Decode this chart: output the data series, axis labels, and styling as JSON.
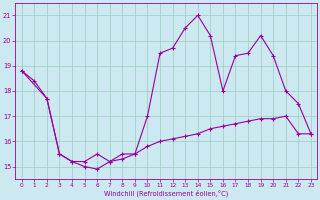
{
  "xlabel": "Windchill (Refroidissement éolien,°C)",
  "background_color": "#cce8f0",
  "line_color": "#990099",
  "grid_color": "#99ccbb",
  "ylim": [
    14.5,
    21.5
  ],
  "xlim": [
    -0.5,
    23.5
  ],
  "yticks": [
    15,
    16,
    17,
    18,
    19,
    20,
    21
  ],
  "xticks": [
    0,
    1,
    2,
    3,
    4,
    5,
    6,
    7,
    8,
    9,
    10,
    11,
    12,
    13,
    14,
    15,
    16,
    17,
    18,
    19,
    20,
    21,
    22,
    23
  ],
  "series1_x": [
    0,
    1,
    2,
    3,
    4,
    5,
    6,
    7,
    8,
    9,
    10,
    11,
    12,
    13,
    14,
    15,
    16,
    17,
    18,
    19,
    20,
    21,
    22,
    23
  ],
  "series1_y": [
    18.8,
    18.4,
    17.7,
    15.5,
    15.2,
    15.0,
    14.9,
    15.2,
    15.5,
    15.5,
    17.0,
    19.5,
    19.7,
    20.5,
    21.0,
    20.2,
    18.0,
    19.4,
    19.5,
    20.2,
    19.4,
    18.0,
    17.5,
    16.3
  ],
  "series2_x": [
    0,
    2,
    3,
    4,
    5,
    6,
    7,
    8,
    9,
    10,
    11,
    12,
    13,
    14,
    15,
    16,
    17,
    18,
    19,
    20,
    21,
    22,
    23
  ],
  "series2_y": [
    18.8,
    17.7,
    15.5,
    15.2,
    15.2,
    15.5,
    15.2,
    15.3,
    15.5,
    15.8,
    16.0,
    16.1,
    16.2,
    16.3,
    16.5,
    16.6,
    16.7,
    16.8,
    16.9,
    16.9,
    17.0,
    16.3,
    16.3
  ]
}
